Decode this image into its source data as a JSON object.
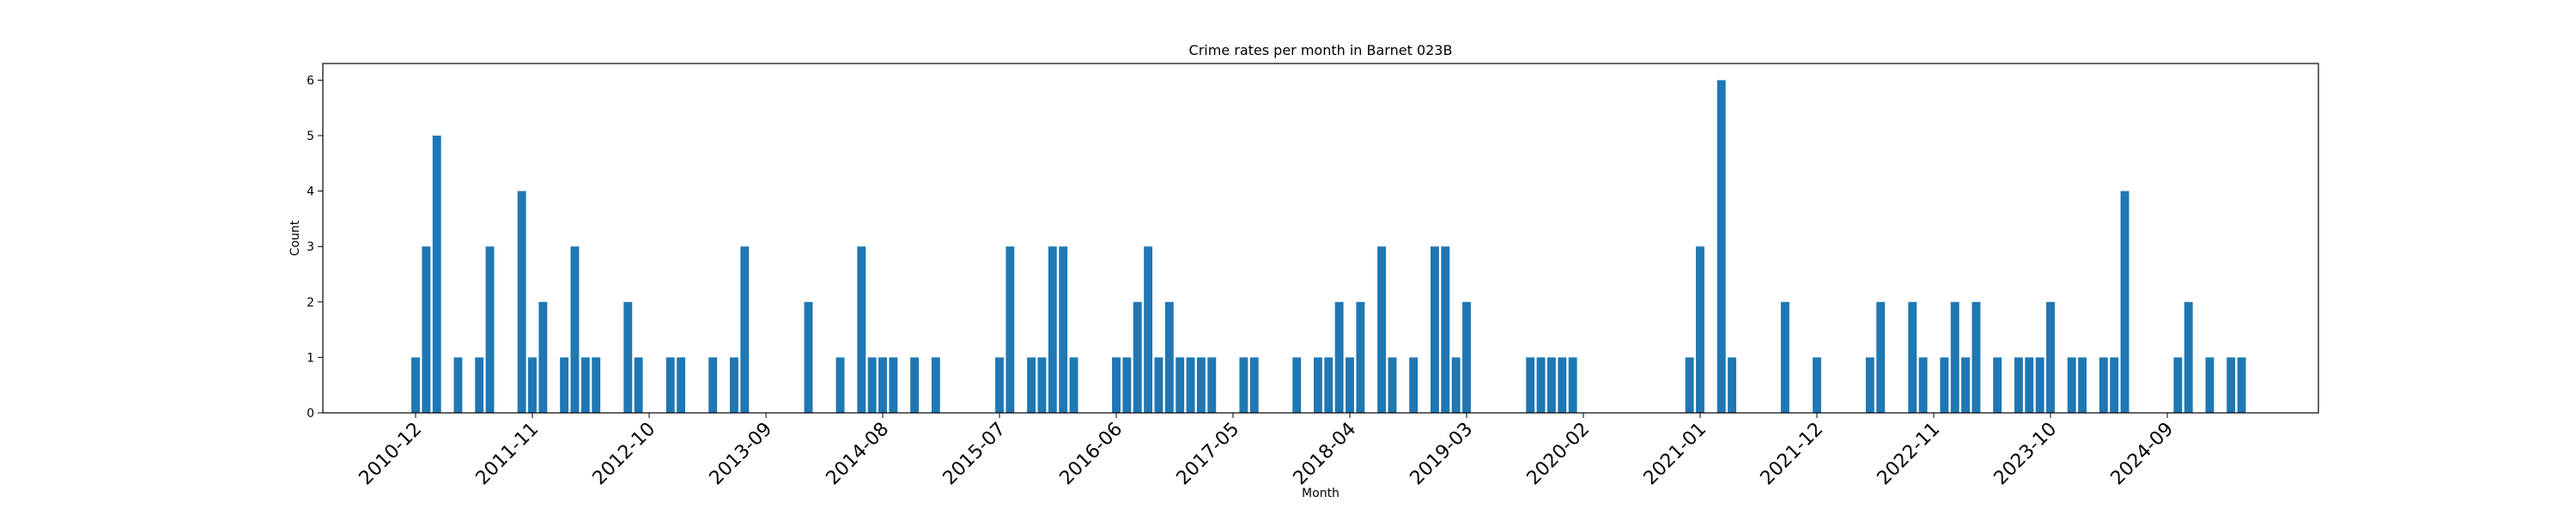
{
  "chart_data": {
    "type": "bar",
    "title": "Crime rates per month in Barnet 023B",
    "xlabel": "Month",
    "ylabel": "Count",
    "ylim": [
      0,
      6.3
    ],
    "yticks": [
      "0",
      "1",
      "2",
      "3",
      "4",
      "5",
      "6"
    ],
    "xtick_labels": [
      "2010-12",
      "2011-11",
      "2012-10",
      "2013-09",
      "2014-08",
      "2015-07",
      "2016-06",
      "2017-05",
      "2018-04",
      "2019-03",
      "2020-02",
      "2021-01",
      "2021-12",
      "2022-11",
      "2023-10",
      "2024-09"
    ],
    "grid": false,
    "color": "#1f77b4",
    "categories": [
      "2010-12",
      "2011-01",
      "2011-02",
      "2011-04",
      "2011-06",
      "2011-07",
      "2011-10",
      "2011-11",
      "2011-12",
      "2012-02",
      "2012-03",
      "2012-04",
      "2012-05",
      "2012-08",
      "2012-09",
      "2012-12",
      "2013-01",
      "2013-04",
      "2013-06",
      "2013-07",
      "2014-01",
      "2014-04",
      "2014-06",
      "2014-07",
      "2014-08",
      "2014-09",
      "2014-11",
      "2015-01",
      "2015-07",
      "2015-08",
      "2015-10",
      "2015-11",
      "2015-12",
      "2016-01",
      "2016-02",
      "2016-06",
      "2016-07",
      "2016-08",
      "2016-09",
      "2016-10",
      "2016-11",
      "2016-12",
      "2017-01",
      "2017-02",
      "2017-03",
      "2017-06",
      "2017-07",
      "2017-11",
      "2018-01",
      "2018-02",
      "2018-03",
      "2018-04",
      "2018-05",
      "2018-07",
      "2018-08",
      "2018-10",
      "2018-12",
      "2019-01",
      "2019-02",
      "2019-03",
      "2019-09",
      "2019-10",
      "2019-11",
      "2019-12",
      "2020-01",
      "2020-12",
      "2021-01",
      "2021-03",
      "2021-04",
      "2021-09",
      "2021-12",
      "2022-05",
      "2022-06",
      "2022-09",
      "2022-10",
      "2022-12",
      "2023-01",
      "2023-02",
      "2023-03",
      "2023-05",
      "2023-07",
      "2023-08",
      "2023-09",
      "2023-10",
      "2023-12",
      "2024-01",
      "2024-03",
      "2024-04",
      "2024-05",
      "2024-10",
      "2024-11",
      "2025-01",
      "2025-03",
      "2025-04"
    ],
    "values": [
      1,
      3,
      5,
      1,
      1,
      3,
      4,
      1,
      2,
      1,
      3,
      1,
      1,
      2,
      1,
      1,
      1,
      1,
      1,
      3,
      2,
      1,
      3,
      1,
      1,
      1,
      1,
      1,
      1,
      3,
      1,
      1,
      3,
      3,
      1,
      1,
      1,
      2,
      3,
      1,
      2,
      1,
      1,
      1,
      1,
      1,
      1,
      1,
      1,
      1,
      2,
      1,
      2,
      3,
      1,
      1,
      3,
      3,
      1,
      2,
      1,
      1,
      1,
      1,
      1,
      1,
      3,
      6,
      1,
      2,
      1,
      1,
      2,
      2,
      1,
      1,
      2,
      1,
      2,
      1,
      1,
      1,
      1,
      2,
      1,
      1,
      1,
      1,
      4,
      1,
      2,
      1,
      1,
      1
    ]
  }
}
